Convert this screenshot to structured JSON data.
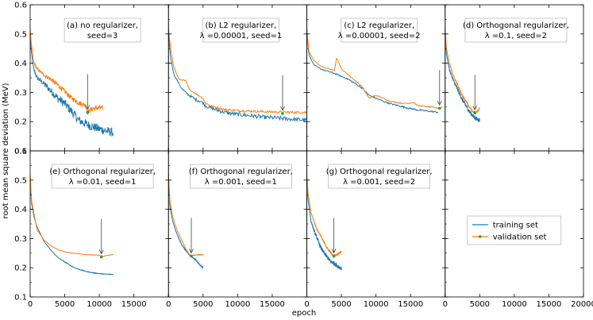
{
  "chart_data": {
    "type": "line",
    "xlabel": "epoch",
    "ylabel": "root mean square deviation (MeV)",
    "ylim": [
      0.1,
      0.6
    ],
    "yticks": [
      "0.1",
      "0.2",
      "0.3",
      "0.4",
      "0.5",
      "0.6"
    ],
    "xlim": [
      0,
      20000
    ],
    "xticks_bottom": [
      "0",
      "5000",
      "10000",
      "15000",
      "20000"
    ],
    "colors": {
      "train": "#1f77b4",
      "valid": "#ff7f0e",
      "marker": "#2ca02c"
    },
    "legend": {
      "position": "center",
      "train": "training set",
      "valid": "validation set"
    },
    "panels": [
      {
        "label1": "(a) no regularizer,",
        "label2": "seed=3",
        "row": 0,
        "col": 0,
        "epochs": 12000,
        "noise": 0.022,
        "train": [
          [
            0,
            0.5
          ],
          [
            150,
            0.44
          ],
          [
            500,
            0.38
          ],
          [
            1000,
            0.35
          ],
          [
            2000,
            0.33
          ],
          [
            3000,
            0.305
          ],
          [
            4000,
            0.28
          ],
          [
            5000,
            0.262
          ],
          [
            6000,
            0.235
          ],
          [
            7000,
            0.205
          ],
          [
            8000,
            0.193
          ],
          [
            9000,
            0.183
          ],
          [
            10000,
            0.175
          ],
          [
            11000,
            0.168
          ],
          [
            12000,
            0.163
          ]
        ],
        "valid": [
          [
            0,
            0.52
          ],
          [
            150,
            0.47
          ],
          [
            500,
            0.405
          ],
          [
            1000,
            0.38
          ],
          [
            2000,
            0.36
          ],
          [
            3000,
            0.345
          ],
          [
            4000,
            0.325
          ],
          [
            5000,
            0.303
          ],
          [
            6000,
            0.28
          ],
          [
            6600,
            0.272
          ],
          [
            7000,
            0.265
          ],
          [
            7500,
            0.26
          ],
          [
            8000,
            0.256
          ],
          [
            8300,
            0.232
          ],
          [
            8600,
            0.238
          ],
          [
            9000,
            0.244
          ],
          [
            10000,
            0.248
          ],
          [
            10500,
            0.246
          ]
        ],
        "marker": [
          8300,
          0.232
        ]
      },
      {
        "label1": "(b) L2 regularizer,",
        "label2": "λ =0.00001, seed=1",
        "row": 0,
        "col": 1,
        "epochs": 20000,
        "noise": 0.01,
        "train": [
          [
            0,
            0.5
          ],
          [
            300,
            0.42
          ],
          [
            800,
            0.36
          ],
          [
            2000,
            0.31
          ],
          [
            3000,
            0.29
          ],
          [
            4000,
            0.275
          ],
          [
            5000,
            0.265
          ],
          [
            5300,
            0.255
          ],
          [
            6000,
            0.248
          ],
          [
            7000,
            0.24
          ],
          [
            8000,
            0.233
          ],
          [
            9000,
            0.228
          ],
          [
            10000,
            0.225
          ],
          [
            12000,
            0.22
          ],
          [
            14000,
            0.215
          ],
          [
            16000,
            0.212
          ],
          [
            18000,
            0.208
          ],
          [
            20000,
            0.205
          ]
        ],
        "valid": [
          [
            0,
            0.52
          ],
          [
            300,
            0.45
          ],
          [
            800,
            0.385
          ],
          [
            1500,
            0.345
          ],
          [
            2500,
            0.34
          ],
          [
            3000,
            0.31
          ],
          [
            4000,
            0.295
          ],
          [
            5000,
            0.28
          ],
          [
            5300,
            0.265
          ],
          [
            6000,
            0.255
          ],
          [
            7000,
            0.248
          ],
          [
            8000,
            0.242
          ],
          [
            9000,
            0.24
          ],
          [
            10000,
            0.238
          ],
          [
            12000,
            0.236
          ],
          [
            14000,
            0.234
          ],
          [
            16000,
            0.233
          ],
          [
            18000,
            0.232
          ],
          [
            20000,
            0.232
          ]
        ],
        "marker": [
          16500,
          0.228
        ]
      },
      {
        "label1": "(c) L2 regularizer,",
        "label2": "λ =0.00001, seed=2",
        "row": 0,
        "col": 2,
        "epochs": 20000,
        "noise": 0.004,
        "train": [
          [
            0,
            0.5
          ],
          [
            300,
            0.43
          ],
          [
            1000,
            0.395
          ],
          [
            2000,
            0.38
          ],
          [
            4000,
            0.365
          ],
          [
            5000,
            0.355
          ],
          [
            6000,
            0.345
          ],
          [
            7000,
            0.33
          ],
          [
            8000,
            0.315
          ],
          [
            9000,
            0.29
          ],
          [
            10000,
            0.28
          ],
          [
            11000,
            0.27
          ],
          [
            12000,
            0.262
          ],
          [
            14000,
            0.25
          ],
          [
            16000,
            0.24
          ],
          [
            18000,
            0.235
          ],
          [
            19000,
            0.232
          ]
        ],
        "valid": [
          [
            0,
            0.52
          ],
          [
            300,
            0.44
          ],
          [
            1000,
            0.41
          ],
          [
            2000,
            0.39
          ],
          [
            4000,
            0.375
          ],
          [
            4300,
            0.42
          ],
          [
            5000,
            0.38
          ],
          [
            6000,
            0.36
          ],
          [
            7000,
            0.34
          ],
          [
            8000,
            0.32
          ],
          [
            9000,
            0.28
          ],
          [
            10000,
            0.29
          ],
          [
            12000,
            0.27
          ],
          [
            14000,
            0.262
          ],
          [
            15500,
            0.265
          ],
          [
            16000,
            0.255
          ],
          [
            18000,
            0.25
          ],
          [
            19000,
            0.246
          ],
          [
            19600,
            0.25
          ]
        ],
        "marker": [
          19200,
          0.246
        ]
      },
      {
        "label1": "(d) Orthogonal regularizer,",
        "label2": "λ =0.1, seed=2",
        "row": 0,
        "col": 3,
        "epochs": 5000,
        "noise": 0.01,
        "train": [
          [
            0,
            0.5
          ],
          [
            200,
            0.43
          ],
          [
            600,
            0.38
          ],
          [
            1200,
            0.34
          ],
          [
            2000,
            0.3
          ],
          [
            2500,
            0.275
          ],
          [
            3000,
            0.255
          ],
          [
            3500,
            0.235
          ],
          [
            4000,
            0.22
          ],
          [
            4500,
            0.21
          ],
          [
            5000,
            0.205
          ]
        ],
        "valid": [
          [
            0,
            0.52
          ],
          [
            200,
            0.45
          ],
          [
            600,
            0.4
          ],
          [
            1200,
            0.355
          ],
          [
            2000,
            0.315
          ],
          [
            2500,
            0.29
          ],
          [
            3000,
            0.27
          ],
          [
            3500,
            0.25
          ],
          [
            4000,
            0.235
          ],
          [
            4300,
            0.23
          ],
          [
            4600,
            0.235
          ],
          [
            5000,
            0.245
          ]
        ],
        "marker": [
          4300,
          0.23
        ]
      },
      {
        "label1": "(e) Orthogonal regularizer,",
        "label2": "λ =0.01, seed=1",
        "row": 1,
        "col": 0,
        "epochs": 12000,
        "noise": 0.002,
        "train": [
          [
            0,
            0.5
          ],
          [
            200,
            0.42
          ],
          [
            600,
            0.37
          ],
          [
            1000,
            0.34
          ],
          [
            2000,
            0.29
          ],
          [
            3000,
            0.26
          ],
          [
            4000,
            0.235
          ],
          [
            5000,
            0.22
          ],
          [
            6000,
            0.205
          ],
          [
            7000,
            0.195
          ],
          [
            8000,
            0.188
          ],
          [
            9000,
            0.183
          ],
          [
            10000,
            0.18
          ],
          [
            11000,
            0.178
          ],
          [
            12000,
            0.177
          ]
        ],
        "valid": [
          [
            0,
            0.52
          ],
          [
            200,
            0.43
          ],
          [
            600,
            0.38
          ],
          [
            1000,
            0.33
          ],
          [
            2000,
            0.295
          ],
          [
            3000,
            0.275
          ],
          [
            4000,
            0.262
          ],
          [
            5000,
            0.255
          ],
          [
            6000,
            0.25
          ],
          [
            7000,
            0.248
          ],
          [
            8000,
            0.245
          ],
          [
            9000,
            0.244
          ],
          [
            10000,
            0.243
          ],
          [
            10500,
            0.238
          ],
          [
            11000,
            0.242
          ],
          [
            12000,
            0.245
          ]
        ],
        "marker": [
          10300,
          0.237
        ]
      },
      {
        "label1": "(f) Orthogonal regularizer,",
        "label2": "λ =0.001, seed=1",
        "row": 1,
        "col": 1,
        "epochs": 5000,
        "noise": 0.002,
        "train": [
          [
            0,
            0.5
          ],
          [
            200,
            0.41
          ],
          [
            600,
            0.36
          ],
          [
            1000,
            0.33
          ],
          [
            1500,
            0.3
          ],
          [
            2000,
            0.275
          ],
          [
            2500,
            0.26
          ],
          [
            3000,
            0.245
          ],
          [
            3500,
            0.235
          ],
          [
            4000,
            0.225
          ],
          [
            4500,
            0.21
          ],
          [
            5000,
            0.2
          ]
        ],
        "valid": [
          [
            0,
            0.52
          ],
          [
            200,
            0.43
          ],
          [
            600,
            0.375
          ],
          [
            1000,
            0.345
          ],
          [
            1500,
            0.315
          ],
          [
            2000,
            0.29
          ],
          [
            2500,
            0.265
          ],
          [
            3000,
            0.245
          ],
          [
            3300,
            0.24
          ],
          [
            3600,
            0.243
          ],
          [
            4200,
            0.244
          ],
          [
            5000,
            0.245
          ]
        ],
        "marker": [
          3300,
          0.24
        ]
      },
      {
        "label1": "(g) Orthogonal regularizer,",
        "label2": "λ =0.001, seed=2",
        "row": 1,
        "col": 2,
        "epochs": 5000,
        "noise": 0.01,
        "train": [
          [
            0,
            0.5
          ],
          [
            200,
            0.43
          ],
          [
            600,
            0.36
          ],
          [
            1000,
            0.33
          ],
          [
            1500,
            0.3
          ],
          [
            2000,
            0.27
          ],
          [
            2500,
            0.25
          ],
          [
            3000,
            0.235
          ],
          [
            3500,
            0.22
          ],
          [
            4000,
            0.215
          ],
          [
            4500,
            0.205
          ],
          [
            5000,
            0.198
          ]
        ],
        "valid": [
          [
            0,
            0.52
          ],
          [
            200,
            0.45
          ],
          [
            600,
            0.39
          ],
          [
            1000,
            0.36
          ],
          [
            1500,
            0.33
          ],
          [
            2000,
            0.31
          ],
          [
            2500,
            0.285
          ],
          [
            3000,
            0.265
          ],
          [
            3500,
            0.25
          ],
          [
            3900,
            0.24
          ],
          [
            4300,
            0.245
          ],
          [
            5000,
            0.255
          ]
        ],
        "marker": [
          3900,
          0.24
        ]
      }
    ]
  }
}
